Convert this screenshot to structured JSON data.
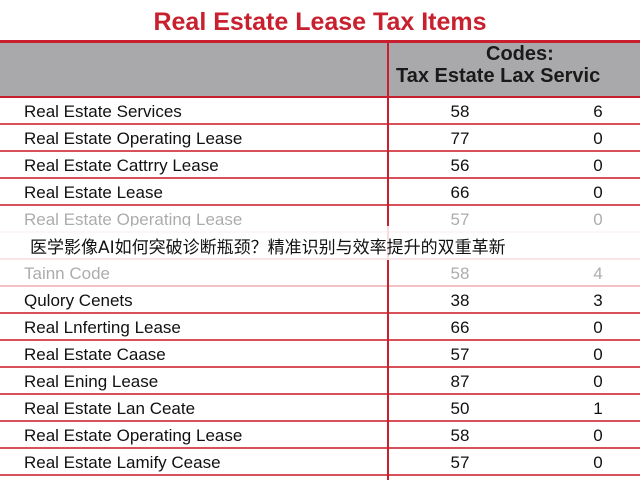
{
  "title": "Real Estate Lease Tax Items",
  "header": {
    "line1": "Codes:",
    "line2": "Tax Estate Lax Servic"
  },
  "rows": [
    [
      "Real Estate Services",
      58,
      6
    ],
    [
      "Real Estate Operating Lease",
      77,
      0
    ],
    [
      "Real Estate Cattrry Lease",
      56,
      0
    ],
    [
      "Real Estate Lease",
      66,
      0
    ],
    [
      "Real Estate Operating Lease",
      57,
      0
    ],
    [
      "Tainn Code",
      58,
      4
    ],
    [
      "Qulory Cenets",
      38,
      3
    ],
    [
      "Real Lnferting Lease",
      66,
      0
    ],
    [
      "Real Estate Caase",
      57,
      0
    ],
    [
      "Real Ening Lease",
      87,
      0
    ],
    [
      "Real Estate Lan Ceate",
      50,
      1
    ],
    [
      "Real Estate Operating Lease",
      58,
      0
    ],
    [
      "Real Estate Lamify Cease",
      57,
      0
    ]
  ],
  "caption": "医学影像AI如何突破诊断瓶颈？精准识别与效率提升的双重革新"
}
